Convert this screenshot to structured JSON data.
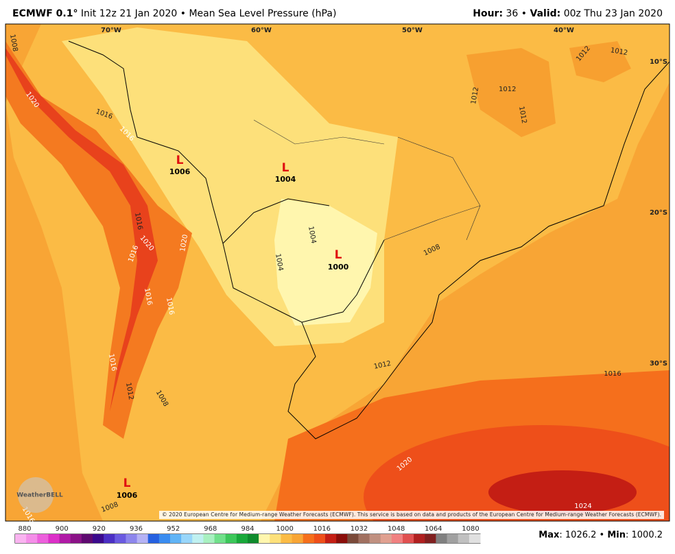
{
  "header": {
    "model": "ECMWF 0.1°",
    "init": "Init 12z 21 Jan 2020",
    "sep": "•",
    "field": "Mean Sea Level Pressure (hPa)",
    "hour_label": "Hour:",
    "hour": "36",
    "valid_label": "Valid:",
    "valid": "00z Thu 23 Jan 2020"
  },
  "map": {
    "lon_labels": [
      "70°W",
      "60°W",
      "50°W",
      "40°W"
    ],
    "lat_labels": [
      "10°S",
      "20°S",
      "30°S"
    ],
    "contour_labels": [
      "1008",
      "1020",
      "1016",
      "1016",
      "1012",
      "1012",
      "1012",
      "1012",
      "1012",
      "1016",
      "1020",
      "1020",
      "1016",
      "1016",
      "1016",
      "1004",
      "1004",
      "1008",
      "1012",
      "1016",
      "1020",
      "1024",
      "1012",
      "1008",
      "1008",
      "1016",
      "1016"
    ],
    "lows": [
      {
        "symbol": "L",
        "value": "1006"
      },
      {
        "symbol": "L",
        "value": "1004"
      },
      {
        "symbol": "L",
        "value": "1000"
      },
      {
        "symbol": "L",
        "value": "1006"
      }
    ],
    "logo": "WeatherBELL",
    "copyright": "© 2020 European Centre for Medium-range Weather Forecasts (ECMWF). This service is based on data and products of the European Centre for Medium-range Weather Forecasts (ECMWF)."
  },
  "colorbar": {
    "labels": [
      "880",
      "900",
      "920",
      "936",
      "952",
      "968",
      "984",
      "1000",
      "1016",
      "1032",
      "1048",
      "1064",
      "1080"
    ]
  },
  "footer": {
    "max_label": "Max",
    "max": ": 1026.2",
    "sep": "•",
    "min_label": "Min",
    "min": ": 1000.2"
  }
}
